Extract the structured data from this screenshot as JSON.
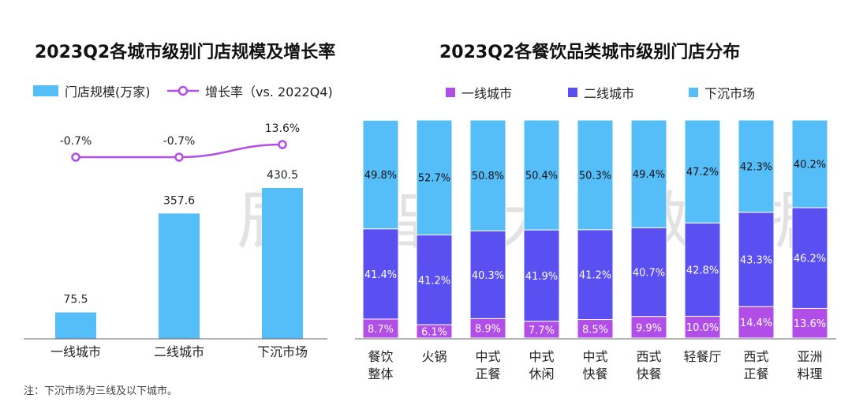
{
  "watermark": "辰 智 大 数 据",
  "note": "注：下沉市场为三线及以下城市。",
  "chart_data": [
    {
      "type": "bar",
      "title": "2023Q2各城市级别门店规模及增长率",
      "categories": [
        "一线城市",
        "二线城市",
        "下沉市场"
      ],
      "series": [
        {
          "name": "门店规模(万家)",
          "values": [
            75.5,
            357.6,
            430.5
          ],
          "labels": [
            "75.5",
            "357.6",
            "430.5"
          ],
          "color": "#55bdf7"
        },
        {
          "name": "增长率（vs. 2022Q4)",
          "type": "line",
          "values": [
            -0.7,
            -0.7,
            13.6
          ],
          "labels": [
            "-0.7%",
            "-0.7%",
            "13.6%"
          ],
          "color": "#b24ee8"
        }
      ]
    },
    {
      "type": "bar",
      "stacked": true,
      "title": "2023Q2各餐饮品类城市级别门店分布",
      "categories": [
        [
          "餐饮",
          "整体"
        ],
        [
          "火锅"
        ],
        [
          "中式",
          "正餐"
        ],
        [
          "中式",
          "休闲"
        ],
        [
          "中式",
          "快餐"
        ],
        [
          "西式",
          "快餐"
        ],
        [
          "轻餐厅"
        ],
        [
          "西式",
          "正餐"
        ],
        [
          "亚洲",
          "料理"
        ]
      ],
      "series": [
        {
          "name": "一线城市",
          "color": "#b24ee8",
          "values": [
            8.7,
            6.1,
            8.9,
            7.7,
            8.5,
            9.9,
            10.0,
            14.4,
            13.6
          ],
          "labels": [
            "8.7%",
            "6.1%",
            "8.9%",
            "7.7%",
            "8.5%",
            "9.9%",
            "10.0%",
            "14.4%",
            "13.6%"
          ]
        },
        {
          "name": "二线城市",
          "color": "#5a4ff0",
          "values": [
            41.4,
            41.2,
            40.3,
            41.9,
            41.2,
            40.7,
            42.8,
            43.3,
            46.2
          ],
          "labels": [
            "41.4%",
            "41.2%",
            "40.3%",
            "41.9%",
            "41.2%",
            "40.7%",
            "42.8%",
            "43.3%",
            "46.2%"
          ]
        },
        {
          "name": "下沉市场",
          "color": "#55bdf7",
          "values": [
            49.8,
            52.7,
            50.8,
            50.4,
            50.3,
            49.4,
            47.2,
            42.3,
            40.2
          ],
          "labels": [
            "49.8%",
            "52.7%",
            "50.8%",
            "50.4%",
            "50.3%",
            "49.4%",
            "47.2%",
            "42.3%",
            "40.2%"
          ]
        }
      ]
    }
  ]
}
